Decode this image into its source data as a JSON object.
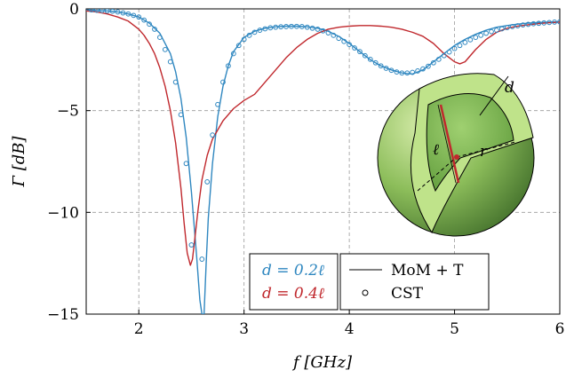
{
  "chart_data": {
    "type": "line",
    "xlabel": "f [GHz]",
    "ylabel": "Γ [dB]",
    "xlim": [
      1.5,
      6
    ],
    "ylim": [
      -15,
      0
    ],
    "xticks": [
      "2",
      "3",
      "4",
      "5",
      "6"
    ],
    "yticks": [
      "0",
      "−5",
      "−10",
      "−15"
    ],
    "grid": true,
    "legend": {
      "placement": "bottom-center",
      "colored_entries": [
        {
          "label": "d = 0.2ℓ",
          "color": "#2f87c0"
        },
        {
          "label": "d = 0.4ℓ",
          "color": "#c0282d"
        }
      ],
      "style_entries": [
        {
          "label": "MoM + T",
          "marker": "line"
        },
        {
          "label": "CST",
          "marker": "circle"
        }
      ]
    },
    "series": [
      {
        "name": "d = 0.2ℓ, MoM + T",
        "color": "#2f87c0",
        "style": "line",
        "x": [
          1.5,
          1.6,
          1.7,
          1.8,
          1.9,
          2.0,
          2.1,
          2.2,
          2.3,
          2.35,
          2.4,
          2.45,
          2.5,
          2.55,
          2.58,
          2.6,
          2.62,
          2.64,
          2.66,
          2.7,
          2.75,
          2.8,
          2.85,
          2.9,
          3.0,
          3.1,
          3.2,
          3.3,
          3.4,
          3.5,
          3.6,
          3.7,
          3.8,
          3.9,
          4.0,
          4.1,
          4.2,
          4.3,
          4.4,
          4.5,
          4.6,
          4.7,
          4.8,
          4.9,
          5.0,
          5.1,
          5.2,
          5.3,
          5.4,
          5.5,
          5.6,
          5.7,
          5.8,
          5.9,
          6.0
        ],
        "y": [
          -0.05,
          -0.08,
          -0.1,
          -0.15,
          -0.25,
          -0.4,
          -0.7,
          -1.2,
          -2.2,
          -3.1,
          -4.4,
          -6.3,
          -9.0,
          -12.2,
          -14.3,
          -15,
          -15,
          -12.5,
          -10.3,
          -7.6,
          -5.3,
          -3.8,
          -2.8,
          -2.1,
          -1.4,
          -1.1,
          -0.95,
          -0.88,
          -0.85,
          -0.85,
          -0.88,
          -0.95,
          -1.1,
          -1.35,
          -1.7,
          -2.1,
          -2.5,
          -2.8,
          -3.0,
          -3.15,
          -3.2,
          -3.0,
          -2.6,
          -2.2,
          -1.8,
          -1.5,
          -1.25,
          -1.05,
          -0.9,
          -0.82,
          -0.75,
          -0.7,
          -0.67,
          -0.65,
          -0.63
        ]
      },
      {
        "name": "d = 0.4ℓ, MoM + T",
        "color": "#c0282d",
        "style": "line",
        "x": [
          1.5,
          1.6,
          1.7,
          1.8,
          1.9,
          2.0,
          2.05,
          2.1,
          2.15,
          2.2,
          2.25,
          2.3,
          2.35,
          2.4,
          2.43,
          2.46,
          2.49,
          2.51,
          2.53,
          2.56,
          2.6,
          2.65,
          2.7,
          2.8,
          2.9,
          3.0,
          3.1,
          3.2,
          3.3,
          3.4,
          3.5,
          3.6,
          3.7,
          3.8,
          3.9,
          4.0,
          4.1,
          4.2,
          4.3,
          4.4,
          4.5,
          4.6,
          4.7,
          4.8,
          4.9,
          5.0,
          5.05,
          5.1,
          5.2,
          5.3,
          5.4,
          5.5,
          5.6,
          5.7,
          5.8,
          5.9,
          6.0
        ],
        "y": [
          -0.1,
          -0.15,
          -0.25,
          -0.4,
          -0.6,
          -1.0,
          -1.3,
          -1.7,
          -2.2,
          -2.9,
          -3.8,
          -5.0,
          -6.6,
          -8.8,
          -10.5,
          -12.0,
          -12.6,
          -12.3,
          -11.4,
          -10.0,
          -8.4,
          -7.2,
          -6.4,
          -5.5,
          -4.9,
          -4.5,
          -4.2,
          -3.6,
          -3.0,
          -2.4,
          -1.9,
          -1.5,
          -1.2,
          -1.0,
          -0.9,
          -0.85,
          -0.82,
          -0.82,
          -0.85,
          -0.9,
          -1.0,
          -1.15,
          -1.35,
          -1.7,
          -2.2,
          -2.6,
          -2.7,
          -2.6,
          -2.0,
          -1.5,
          -1.15,
          -0.95,
          -0.85,
          -0.78,
          -0.72,
          -0.68,
          -0.65
        ]
      },
      {
        "name": "d = 0.2ℓ, CST",
        "color": "#2f87c0",
        "style": "markers",
        "x": [
          1.55,
          1.6,
          1.65,
          1.7,
          1.75,
          1.8,
          1.85,
          1.9,
          1.95,
          2.0,
          2.05,
          2.1,
          2.15,
          2.2,
          2.25,
          2.3,
          2.35,
          2.4,
          2.45,
          2.5,
          2.55,
          2.6,
          2.65,
          2.7,
          2.75,
          2.8,
          2.85,
          2.9,
          2.95,
          3.0,
          3.05,
          3.1,
          3.15,
          3.2,
          3.25,
          3.3,
          3.35,
          3.4,
          3.45,
          3.5,
          3.55,
          3.6,
          3.65,
          3.7,
          3.75,
          3.8,
          3.85,
          3.9,
          3.95,
          4.0,
          4.05,
          4.1,
          4.15,
          4.2,
          4.25,
          4.3,
          4.35,
          4.4,
          4.45,
          4.5,
          4.55,
          4.6,
          4.65,
          4.7,
          4.75,
          4.8,
          4.85,
          4.9,
          4.95,
          5.0,
          5.05,
          5.1,
          5.15,
          5.2,
          5.25,
          5.3,
          5.35,
          5.4,
          5.45,
          5.5,
          5.55,
          5.6,
          5.65,
          5.7,
          5.75,
          5.8,
          5.85,
          5.9,
          5.95,
          6.0
        ],
        "y": [
          -0.05,
          -0.07,
          -0.08,
          -0.1,
          -0.12,
          -0.15,
          -0.2,
          -0.25,
          -0.32,
          -0.4,
          -0.55,
          -0.75,
          -1.0,
          -1.4,
          -2.0,
          -2.6,
          -3.6,
          -5.2,
          -7.6,
          -11.6,
          -15.2,
          -12.3,
          -8.5,
          -6.2,
          -4.7,
          -3.6,
          -2.8,
          -2.2,
          -1.8,
          -1.5,
          -1.3,
          -1.15,
          -1.05,
          -0.98,
          -0.93,
          -0.9,
          -0.88,
          -0.87,
          -0.86,
          -0.86,
          -0.87,
          -0.9,
          -0.95,
          -1.0,
          -1.08,
          -1.18,
          -1.3,
          -1.45,
          -1.6,
          -1.75,
          -1.92,
          -2.1,
          -2.3,
          -2.48,
          -2.65,
          -2.8,
          -2.92,
          -3.02,
          -3.1,
          -3.15,
          -3.15,
          -3.12,
          -3.05,
          -2.95,
          -2.82,
          -2.65,
          -2.48,
          -2.3,
          -2.12,
          -1.95,
          -1.8,
          -1.65,
          -1.52,
          -1.4,
          -1.3,
          -1.2,
          -1.12,
          -1.05,
          -0.98,
          -0.92,
          -0.87,
          -0.83,
          -0.79,
          -0.76,
          -0.73,
          -0.71,
          -0.69,
          -0.67,
          -0.65,
          -0.64
        ]
      }
    ],
    "inset": {
      "labels": [
        "d",
        "ℓ",
        "r"
      ]
    }
  }
}
